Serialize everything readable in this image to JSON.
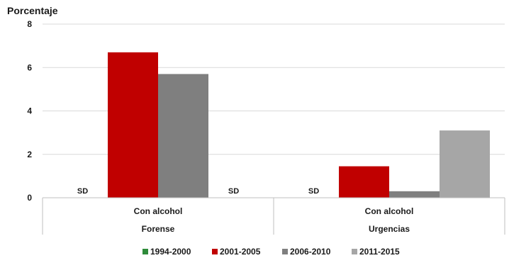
{
  "chart_data": {
    "type": "bar",
    "ylabel": "Porcentaje",
    "ylim": [
      0,
      8
    ],
    "yticks": [
      "0",
      "2",
      "4",
      "6",
      "8"
    ],
    "grid": true,
    "legend_position": "bottom",
    "groups": [
      {
        "label": "Con alcohol",
        "group": "Forense"
      },
      {
        "label": "Con alcohol",
        "group": "Urgencias"
      }
    ],
    "series": [
      {
        "name": "1994-2000",
        "color": "#2e8b3a",
        "values": [
          null,
          null
        ],
        "labels": [
          "SD",
          "SD"
        ]
      },
      {
        "name": "2001-2005",
        "color": "#c00000",
        "values": [
          6.7,
          1.45
        ],
        "labels": [
          "",
          ""
        ]
      },
      {
        "name": "2006-2010",
        "color": "#7f7f7f",
        "values": [
          5.7,
          0.3
        ],
        "labels": [
          "",
          ""
        ]
      },
      {
        "name": "2011-2015",
        "color": "#a6a6a6",
        "values": [
          null,
          3.1
        ],
        "labels": [
          "SD",
          ""
        ]
      }
    ]
  }
}
